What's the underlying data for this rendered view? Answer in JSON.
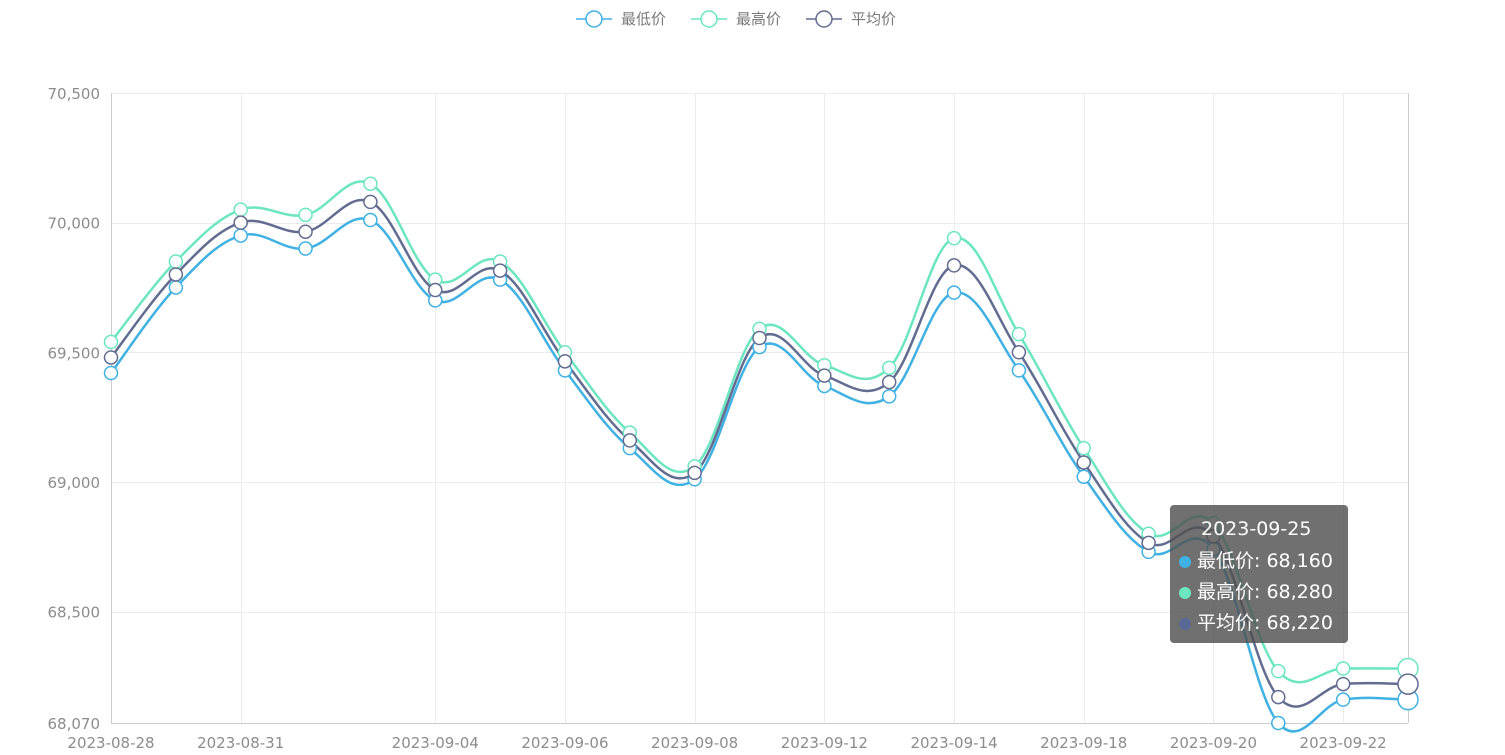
{
  "chart_data": {
    "type": "line",
    "smooth": true,
    "x": [
      "2023-08-28",
      "2023-08-30",
      "2023-08-31",
      "2023-09-01",
      "2023-09-02",
      "2023-09-04",
      "2023-09-05",
      "2023-09-06",
      "2023-09-07",
      "2023-09-08",
      "2023-09-11",
      "2023-09-12",
      "2023-09-13",
      "2023-09-14",
      "2023-09-15",
      "2023-09-18",
      "2023-09-19",
      "2023-09-20",
      "2023-09-21",
      "2023-09-22",
      "2023-09-25"
    ],
    "xticks": [
      "2023-08-28",
      "2023-08-31",
      "2023-09-04",
      "2023-09-06",
      "2023-09-08",
      "2023-09-12",
      "2023-09-14",
      "2023-09-18",
      "2023-09-20",
      "2023-09-22"
    ],
    "ylim": [
      68070,
      70500
    ],
    "yticks": [
      "70,500",
      "70,000",
      "69,500",
      "69,000",
      "68,500",
      "68,070"
    ],
    "ytick_values": [
      70500,
      70000,
      69500,
      69000,
      68500,
      68070
    ],
    "grid": true,
    "legend_position": "top-center",
    "series": [
      {
        "name": "最低价",
        "color": "#3fb1e3",
        "values": [
          69420,
          69750,
          69950,
          69900,
          70010,
          69700,
          69780,
          69430,
          69130,
          69010,
          69520,
          69370,
          69330,
          69730,
          69430,
          69020,
          68730,
          68740,
          68070,
          68160,
          68160
        ]
      },
      {
        "name": "最高价",
        "color": "#6be6c1",
        "values": [
          69540,
          69850,
          70050,
          70030,
          70150,
          69780,
          69850,
          69500,
          69190,
          69060,
          69590,
          69450,
          69440,
          69940,
          69570,
          69130,
          68800,
          68840,
          68270,
          68280,
          68280
        ]
      },
      {
        "name": "平均价",
        "color": "#626c91",
        "values": [
          69480,
          69800,
          70000,
          69965,
          70080,
          69740,
          69815,
          69465,
          69160,
          69035,
          69555,
          69410,
          69385,
          69835,
          69500,
          69075,
          68765,
          68790,
          68170,
          68220,
          68220
        ]
      }
    ],
    "tooltip": {
      "title": "2023-09-25",
      "rows": [
        {
          "label": "最低价: 68,160",
          "color": "#3fb1e3"
        },
        {
          "label": "最高价: 68,280",
          "color": "#6be6c1"
        },
        {
          "label": "平均价: 68,220",
          "color": "#5a6a96"
        }
      ]
    }
  }
}
